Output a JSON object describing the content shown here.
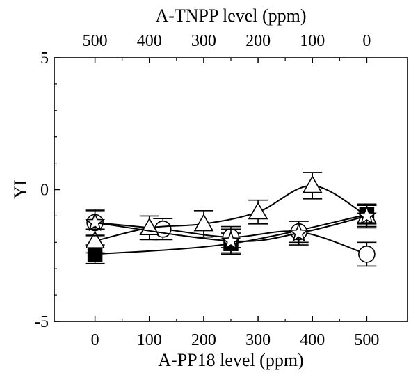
{
  "chart_data": {
    "type": "line",
    "xlabel": "A-PP18 level (ppm)",
    "x2label": "A-TNPP level (ppm)",
    "ylabel": "YI",
    "xlim": [
      -75,
      575
    ],
    "ylim": [
      -5,
      5
    ],
    "x_ticks": [
      0,
      100,
      200,
      300,
      400,
      500
    ],
    "x_tick_labels": [
      "0",
      "100",
      "200",
      "300",
      "400",
      "500"
    ],
    "x2_tick_labels": [
      "500",
      "400",
      "300",
      "200",
      "100",
      "0"
    ],
    "y_ticks": [
      -5,
      0,
      5
    ],
    "y_tick_labels": [
      "-5",
      "0",
      "5"
    ],
    "grid": false,
    "legend": "none",
    "series": [
      {
        "marker": "square-filled",
        "x": [
          0,
          250,
          500
        ],
        "y": [
          -2.45,
          -2.05,
          -0.95
        ],
        "err": [
          0.35,
          0.4,
          0.35
        ]
      },
      {
        "marker": "circle-open",
        "x": [
          0,
          125,
          250,
          375,
          500
        ],
        "y": [
          -1.25,
          -1.5,
          -1.8,
          -1.6,
          -2.45
        ],
        "err": [
          0.45,
          0.4,
          0.4,
          0.4,
          0.45
        ]
      },
      {
        "marker": "triangle-open",
        "x": [
          0,
          100,
          200,
          300,
          400,
          500
        ],
        "y": [
          -1.95,
          -1.45,
          -1.3,
          -0.85,
          0.15,
          -1.0
        ],
        "err": [
          0.45,
          0.45,
          0.5,
          0.45,
          0.5,
          0.4
        ]
      },
      {
        "marker": "star-open",
        "x": [
          0,
          250,
          375,
          500
        ],
        "y": [
          -1.25,
          -1.95,
          -1.65,
          -1.0
        ],
        "err": [
          0.5,
          0.45,
          0.45,
          0.45
        ]
      }
    ]
  }
}
